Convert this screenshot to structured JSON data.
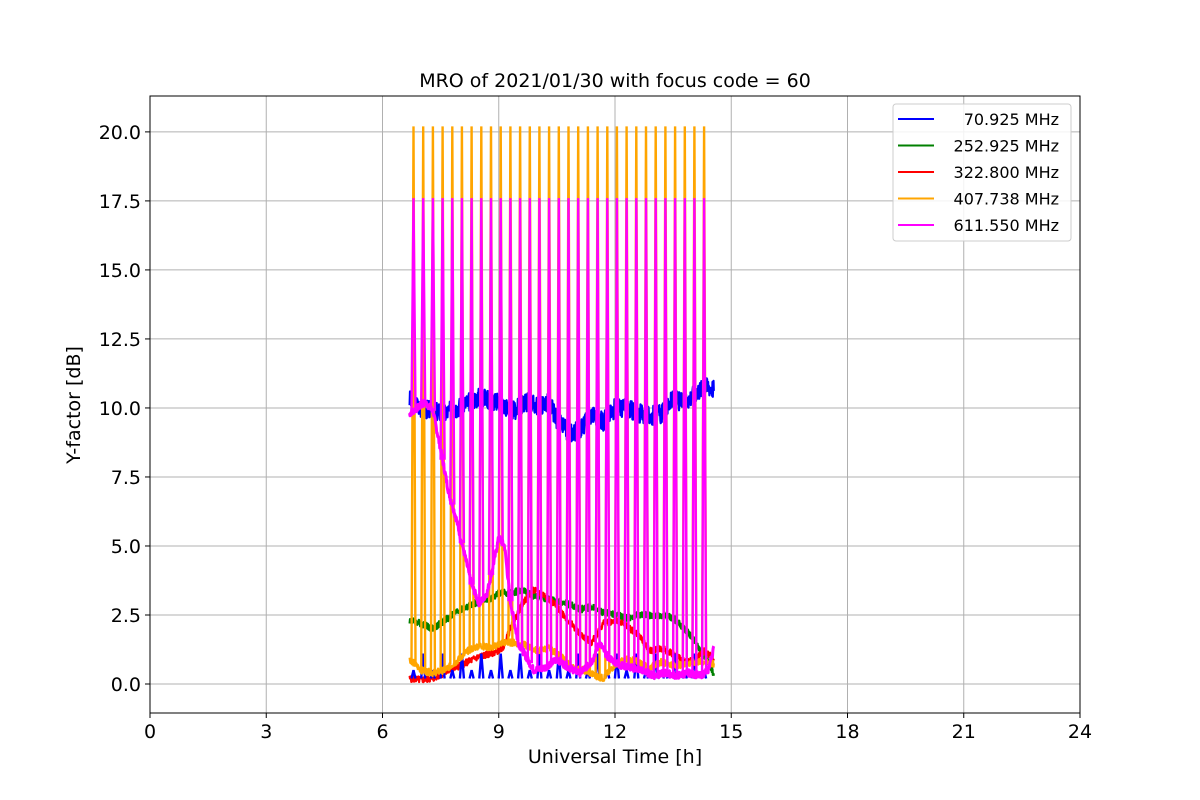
{
  "chart_data": {
    "type": "line",
    "title": "MRO of 2021/01/30 with focus code = 60",
    "xlabel": "Universal Time [h]",
    "ylabel": "Y-factor [dB]",
    "xlim": [
      0,
      24
    ],
    "ylim": [
      -1.05,
      21.3
    ],
    "xticks": [
      0,
      3,
      6,
      9,
      12,
      15,
      18,
      21,
      24
    ],
    "xtick_labels": [
      "0",
      "3",
      "6",
      "9",
      "12",
      "15",
      "18",
      "21",
      "24"
    ],
    "yticks": [
      0,
      2.5,
      5,
      7.5,
      10,
      12.5,
      15,
      17.5,
      20
    ],
    "ytick_labels": [
      "0.0",
      "2.5",
      "5.0",
      "7.5",
      "10.0",
      "12.5",
      "15.0",
      "17.5",
      "20.0"
    ],
    "grid": true,
    "legend_position": "top-right",
    "spike_interval_h": 0.25,
    "series": [
      {
        "name": "70.925 MHz",
        "color": "#0000ff",
        "points": [
          [
            6.7,
            10.3
          ],
          [
            7.0,
            10.0
          ],
          [
            7.3,
            9.9
          ],
          [
            7.6,
            9.8
          ],
          [
            7.9,
            10.0
          ],
          [
            8.2,
            10.2
          ],
          [
            8.5,
            10.4
          ],
          [
            8.8,
            10.3
          ],
          [
            9.1,
            10.1
          ],
          [
            9.4,
            9.9
          ],
          [
            9.7,
            10.2
          ],
          [
            10.0,
            10.1
          ],
          [
            10.3,
            10.2
          ],
          [
            10.5,
            9.6
          ],
          [
            10.8,
            9.1
          ],
          [
            11.1,
            9.2
          ],
          [
            11.4,
            9.8
          ],
          [
            11.7,
            9.5
          ],
          [
            12.0,
            10.0
          ],
          [
            12.3,
            10.0
          ],
          [
            12.6,
            9.8
          ],
          [
            12.9,
            9.7
          ],
          [
            13.2,
            9.8
          ],
          [
            13.5,
            10.3
          ],
          [
            13.8,
            10.2
          ],
          [
            14.1,
            10.6
          ],
          [
            14.4,
            10.8
          ],
          [
            14.55,
            10.7
          ]
        ],
        "spike_baseline": 0.2,
        "spike_peaks": [
          0.5,
          1.1
        ]
      },
      {
        "name": "252.925 MHz",
        "color": "#008000",
        "points": [
          [
            6.7,
            2.3
          ],
          [
            7.0,
            2.2
          ],
          [
            7.3,
            2.0
          ],
          [
            7.6,
            2.3
          ],
          [
            7.9,
            2.6
          ],
          [
            8.2,
            2.8
          ],
          [
            8.5,
            3.0
          ],
          [
            8.8,
            3.1
          ],
          [
            9.0,
            3.3
          ],
          [
            9.3,
            3.3
          ],
          [
            9.6,
            3.4
          ],
          [
            9.9,
            3.2
          ],
          [
            10.2,
            3.1
          ],
          [
            10.5,
            3.0
          ],
          [
            10.8,
            2.9
          ],
          [
            11.1,
            2.7
          ],
          [
            11.4,
            2.8
          ],
          [
            11.7,
            2.6
          ],
          [
            12.0,
            2.5
          ],
          [
            12.3,
            2.4
          ],
          [
            12.6,
            2.5
          ],
          [
            12.9,
            2.5
          ],
          [
            13.2,
            2.5
          ],
          [
            13.5,
            2.4
          ],
          [
            13.8,
            2.0
          ],
          [
            14.1,
            1.5
          ],
          [
            14.3,
            1.0
          ],
          [
            14.45,
            0.7
          ],
          [
            14.55,
            0.3
          ]
        ]
      },
      {
        "name": "322.800 MHz",
        "color": "#ff0000",
        "points": [
          [
            6.7,
            0.2
          ],
          [
            7.0,
            0.15
          ],
          [
            7.3,
            0.2
          ],
          [
            7.6,
            0.4
          ],
          [
            7.9,
            0.6
          ],
          [
            8.2,
            0.8
          ],
          [
            8.5,
            1.0
          ],
          [
            8.8,
            1.1
          ],
          [
            9.1,
            1.3
          ],
          [
            9.3,
            2.0
          ],
          [
            9.6,
            2.9
          ],
          [
            9.9,
            3.4
          ],
          [
            10.2,
            3.2
          ],
          [
            10.5,
            2.8
          ],
          [
            10.8,
            2.3
          ],
          [
            11.1,
            1.8
          ],
          [
            11.4,
            1.5
          ],
          [
            11.7,
            2.2
          ],
          [
            12.0,
            2.3
          ],
          [
            12.3,
            2.1
          ],
          [
            12.6,
            1.8
          ],
          [
            12.9,
            1.2
          ],
          [
            13.2,
            1.3
          ],
          [
            13.5,
            1.1
          ],
          [
            13.8,
            0.8
          ],
          [
            14.1,
            0.9
          ],
          [
            14.3,
            1.2
          ],
          [
            14.55,
            0.9
          ]
        ]
      },
      {
        "name": "407.738 MHz",
        "color": "#ffa500",
        "points": [
          [
            6.7,
            0.9
          ],
          [
            7.0,
            0.5
          ],
          [
            7.3,
            0.4
          ],
          [
            7.6,
            0.5
          ],
          [
            7.9,
            0.8
          ],
          [
            8.2,
            1.2
          ],
          [
            8.5,
            1.4
          ],
          [
            8.8,
            1.3
          ],
          [
            9.1,
            1.5
          ],
          [
            9.4,
            1.5
          ],
          [
            9.7,
            1.4
          ],
          [
            10.0,
            1.2
          ],
          [
            10.3,
            1.3
          ],
          [
            10.6,
            1.0
          ],
          [
            10.9,
            0.6
          ],
          [
            11.2,
            0.5
          ],
          [
            11.5,
            0.3
          ],
          [
            11.7,
            0.2
          ],
          [
            12.0,
            0.7
          ],
          [
            12.3,
            0.9
          ],
          [
            12.6,
            0.8
          ],
          [
            12.9,
            0.6
          ],
          [
            13.2,
            0.8
          ],
          [
            13.5,
            0.7
          ],
          [
            13.8,
            0.7
          ],
          [
            14.1,
            0.8
          ],
          [
            14.4,
            0.8
          ],
          [
            14.55,
            0.7
          ]
        ],
        "spike_peak": 20.2
      },
      {
        "name": "611.550 MHz",
        "color": "#ff00ff",
        "points": [
          [
            6.7,
            9.8
          ],
          [
            6.9,
            10.0
          ],
          [
            7.1,
            10.2
          ],
          [
            7.3,
            9.9
          ],
          [
            7.5,
            8.5
          ],
          [
            7.7,
            7.0
          ],
          [
            7.9,
            6.0
          ],
          [
            8.1,
            4.8
          ],
          [
            8.3,
            3.6
          ],
          [
            8.5,
            2.9
          ],
          [
            8.7,
            3.3
          ],
          [
            8.9,
            4.6
          ],
          [
            9.0,
            5.3
          ],
          [
            9.15,
            5.0
          ],
          [
            9.3,
            3.0
          ],
          [
            9.5,
            1.5
          ],
          [
            9.7,
            1.0
          ],
          [
            9.9,
            0.5
          ],
          [
            10.2,
            0.6
          ],
          [
            10.5,
            0.9
          ],
          [
            10.8,
            0.6
          ],
          [
            11.1,
            0.4
          ],
          [
            11.4,
            0.8
          ],
          [
            11.6,
            1.5
          ],
          [
            11.8,
            1.0
          ],
          [
            12.1,
            0.7
          ],
          [
            12.4,
            0.6
          ],
          [
            12.7,
            0.5
          ],
          [
            13.0,
            0.3
          ],
          [
            13.3,
            0.4
          ],
          [
            13.6,
            0.3
          ],
          [
            13.9,
            0.4
          ],
          [
            14.2,
            0.3
          ],
          [
            14.4,
            0.5
          ],
          [
            14.55,
            1.3
          ]
        ],
        "spike_peak": 17.6
      }
    ]
  }
}
